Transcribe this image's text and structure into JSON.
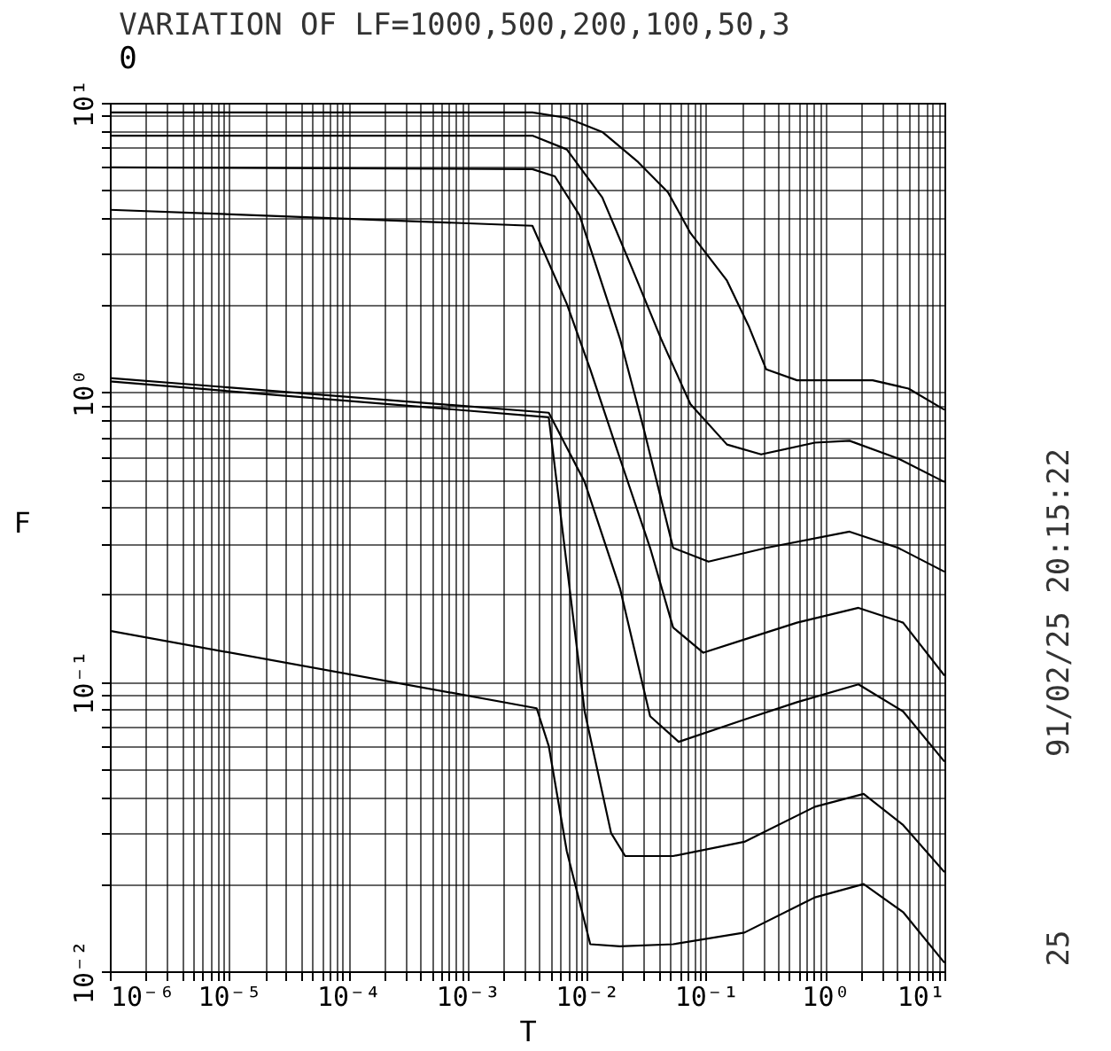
{
  "chart_data": {
    "type": "line",
    "title": "VARIATION OF LF=1000,500,200,100,50,3",
    "subtitle": "0",
    "xlabel": "T",
    "ylabel": "F",
    "log": "xy",
    "grid": true,
    "marker": "none",
    "line_style": "solid",
    "xlim": [
      1e-06,
      10
    ],
    "ylim": [
      0.01,
      10
    ],
    "xticks": [
      {
        "value": 1e-06,
        "label": "10⁻⁶"
      },
      {
        "value": 2e-06,
        "label": null
      },
      {
        "value": 3e-06,
        "label": null
      },
      {
        "value": 4e-06,
        "label": null
      },
      {
        "value": 5e-06,
        "label": null
      },
      {
        "value": 6e-06,
        "label": null
      },
      {
        "value": 7e-06,
        "label": null
      },
      {
        "value": 8e-06,
        "label": null
      },
      {
        "value": 9e-06,
        "label": null
      },
      {
        "value": 1e-05,
        "label": "10⁻⁵"
      },
      {
        "value": 2e-05,
        "label": null
      },
      {
        "value": 3e-05,
        "label": null
      },
      {
        "value": 4e-05,
        "label": null
      },
      {
        "value": 5e-05,
        "label": null
      },
      {
        "value": 6e-05,
        "label": null
      },
      {
        "value": 7e-05,
        "label": null
      },
      {
        "value": 8e-05,
        "label": null
      },
      {
        "value": 9e-05,
        "label": null
      },
      {
        "value": 0.0001,
        "label": "10⁻⁴"
      },
      {
        "value": 0.0002,
        "label": null
      },
      {
        "value": 0.0003,
        "label": null
      },
      {
        "value": 0.0004,
        "label": null
      },
      {
        "value": 0.0005,
        "label": null
      },
      {
        "value": 0.0006,
        "label": null
      },
      {
        "value": 0.0007,
        "label": null
      },
      {
        "value": 0.0008,
        "label": null
      },
      {
        "value": 0.0009,
        "label": null
      },
      {
        "value": 0.001,
        "label": "10⁻³"
      },
      {
        "value": 0.002,
        "label": null
      },
      {
        "value": 0.003,
        "label": null
      },
      {
        "value": 0.004,
        "label": null
      },
      {
        "value": 0.005,
        "label": null
      },
      {
        "value": 0.006,
        "label": null
      },
      {
        "value": 0.007,
        "label": null
      },
      {
        "value": 0.008,
        "label": null
      },
      {
        "value": 0.009,
        "label": null
      },
      {
        "value": 0.01,
        "label": "10⁻²"
      },
      {
        "value": 0.02,
        "label": null
      },
      {
        "value": 0.03,
        "label": null
      },
      {
        "value": 0.04,
        "label": null
      },
      {
        "value": 0.05,
        "label": null
      },
      {
        "value": 0.06,
        "label": null
      },
      {
        "value": 0.07,
        "label": null
      },
      {
        "value": 0.08,
        "label": null
      },
      {
        "value": 0.09,
        "label": null
      },
      {
        "value": 0.1,
        "label": "10⁻¹"
      },
      {
        "value": 0.2,
        "label": null
      },
      {
        "value": 0.3,
        "label": null
      },
      {
        "value": 0.4,
        "label": null
      },
      {
        "value": 0.5,
        "label": null
      },
      {
        "value": 0.6,
        "label": null
      },
      {
        "value": 0.7,
        "label": null
      },
      {
        "value": 0.8,
        "label": null
      },
      {
        "value": 0.9,
        "label": null
      },
      {
        "value": 1,
        "label": "10⁰"
      },
      {
        "value": 2,
        "label": null
      },
      {
        "value": 3,
        "label": null
      },
      {
        "value": 4,
        "label": null
      },
      {
        "value": 5,
        "label": null
      },
      {
        "value": 6,
        "label": null
      },
      {
        "value": 7,
        "label": null
      },
      {
        "value": 8,
        "label": null
      },
      {
        "value": 9,
        "label": null
      },
      {
        "value": 10,
        "label": "10¹"
      }
    ],
    "yticks": [
      {
        "value": 0.01,
        "label": "10⁻²"
      },
      {
        "value": 0.02,
        "label": null
      },
      {
        "value": 0.03,
        "label": null
      },
      {
        "value": 0.04,
        "label": null
      },
      {
        "value": 0.05,
        "label": null
      },
      {
        "value": 0.06,
        "label": null
      },
      {
        "value": 0.07,
        "label": null
      },
      {
        "value": 0.08,
        "label": null
      },
      {
        "value": 0.09,
        "label": null
      },
      {
        "value": 0.1,
        "label": "10⁻¹"
      },
      {
        "value": 0.2,
        "label": null
      },
      {
        "value": 0.3,
        "label": null
      },
      {
        "value": 0.4,
        "label": null
      },
      {
        "value": 0.5,
        "label": null
      },
      {
        "value": 0.6,
        "label": null
      },
      {
        "value": 0.7,
        "label": null
      },
      {
        "value": 0.8,
        "label": null
      },
      {
        "value": 0.9,
        "label": null
      },
      {
        "value": 1,
        "label": "10⁰"
      },
      {
        "value": 2,
        "label": null
      },
      {
        "value": 3,
        "label": null
      },
      {
        "value": 4,
        "label": null
      },
      {
        "value": 5,
        "label": null
      },
      {
        "value": 6,
        "label": null
      },
      {
        "value": 7,
        "label": null
      },
      {
        "value": 8,
        "label": null
      },
      {
        "value": 9,
        "label": null
      },
      {
        "value": 10,
        "label": "10¹"
      }
    ],
    "annotations": [
      "91/02/25 20:15:22",
      "25"
    ],
    "series": [
      {
        "color": "#000000",
        "x": [
          1e-06,
          0.0035,
          0.0068,
          0.0135,
          0.027,
          0.048,
          0.074,
          0.15,
          0.23,
          0.32,
          0.58,
          1.04,
          2.5,
          5.0,
          10
        ],
        "values": [
          9.26,
          9.26,
          8.87,
          7.93,
          6.24,
          4.91,
          3.55,
          2.43,
          1.68,
          1.2,
          1.1,
          1.1,
          1.1,
          1.03,
          0.87
        ]
      },
      {
        "color": "#000000",
        "x": [
          1e-06,
          0.0035,
          0.0068,
          0.0135,
          0.024,
          0.042,
          0.074,
          0.15,
          0.29,
          0.82,
          1.6,
          4.1,
          10
        ],
        "values": [
          7.7,
          7.7,
          6.9,
          4.71,
          2.68,
          1.53,
          0.91,
          0.66,
          0.61,
          0.67,
          0.68,
          0.59,
          0.49
        ]
      },
      {
        "color": "#000000",
        "x": [
          1e-06,
          0.0035,
          0.0054,
          0.0087,
          0.019,
          0.03,
          0.053,
          0.105,
          0.32,
          1.6,
          4.1,
          10
        ],
        "values": [
          5.98,
          5.9,
          5.57,
          4.09,
          1.53,
          0.75,
          0.29,
          0.26,
          0.29,
          0.33,
          0.29,
          0.24
        ]
      },
      {
        "color": "#000000",
        "x": [
          1e-06,
          0.0035,
          0.0068,
          0.0107,
          0.019,
          0.034,
          0.053,
          0.095,
          0.21,
          0.58,
          1.9,
          4.5,
          10
        ],
        "values": [
          4.27,
          3.76,
          2.02,
          1.2,
          0.59,
          0.29,
          0.154,
          0.126,
          0.14,
          0.16,
          0.18,
          0.16,
          0.105
        ]
      },
      {
        "color": "#000000",
        "x": [
          1e-06,
          0.0048,
          0.0096,
          0.019,
          0.034,
          0.059,
          0.21,
          0.58,
          1.9,
          4.5,
          10
        ],
        "values": [
          1.12,
          0.85,
          0.49,
          0.21,
          0.076,
          0.062,
          0.074,
          0.085,
          0.098,
          0.079,
          0.053
        ]
      },
      {
        "color": "#000000",
        "x": [
          1e-06,
          0.0048,
          0.0064,
          0.0096,
          0.016,
          0.021,
          0.053,
          0.21,
          0.82,
          2.1,
          4.5,
          10
        ],
        "values": [
          1.09,
          0.82,
          0.31,
          0.079,
          0.03,
          0.025,
          0.025,
          0.028,
          0.037,
          0.041,
          0.032,
          0.022
        ]
      },
      {
        "color": "#000000",
        "x": [
          1e-06,
          0.0038,
          0.0048,
          0.0068,
          0.0107,
          0.019,
          0.053,
          0.21,
          0.82,
          2.1,
          4.5,
          10
        ],
        "values": [
          0.15,
          0.081,
          0.06,
          0.026,
          0.0124,
          0.0122,
          0.0124,
          0.0136,
          0.018,
          0.02,
          0.016,
          0.0107
        ]
      }
    ]
  }
}
